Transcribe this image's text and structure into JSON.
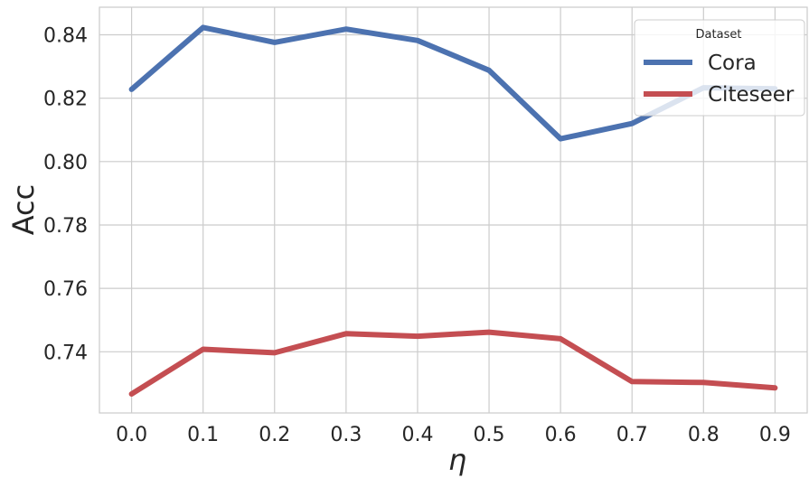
{
  "chart_data": {
    "type": "line",
    "xlabel": "η",
    "ylabel": "Acc",
    "x": [
      0.0,
      0.1,
      0.2,
      0.3,
      0.4,
      0.5,
      0.6,
      0.7,
      0.8,
      0.9
    ],
    "x_tick_labels": [
      "0.0",
      "0.1",
      "0.2",
      "0.3",
      "0.4",
      "0.5",
      "0.6",
      "0.7",
      "0.8",
      "0.9"
    ],
    "y_ticks": [
      0.74,
      0.76,
      0.78,
      0.8,
      0.82,
      0.84
    ],
    "y_tick_labels": [
      "0.74",
      "0.76",
      "0.78",
      "0.80",
      "0.82",
      "0.84"
    ],
    "xlim": [
      -0.045,
      0.945
    ],
    "ylim": [
      0.7207,
      0.8487
    ],
    "grid": true,
    "legend": {
      "title": "Dataset",
      "position": "top-right"
    },
    "series": [
      {
        "name": "Cora",
        "color": "#4c72b0",
        "values": [
          0.8228,
          0.8423,
          0.8376,
          0.8418,
          0.8382,
          0.8288,
          0.8072,
          0.812,
          0.8233,
          0.823
        ]
      },
      {
        "name": "Citeseer",
        "color": "#c44e52",
        "values": [
          0.7267,
          0.7408,
          0.7397,
          0.7457,
          0.7449,
          0.7462,
          0.7441,
          0.7306,
          0.7303,
          0.7286
        ]
      }
    ]
  }
}
